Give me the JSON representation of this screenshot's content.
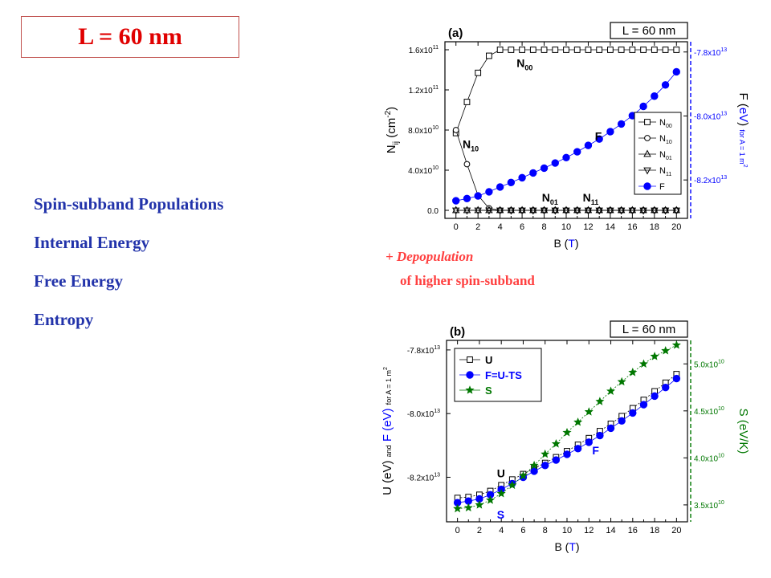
{
  "slide": {
    "title_label": "L = 60 nm",
    "topics": [
      "Spin-subband Populations",
      "Internal Energy",
      "Free Energy",
      "Entropy"
    ],
    "note_line1": "+ Depopulation",
    "note_line2": "of higher spin-subband"
  },
  "colors": {
    "blue": "#0000ff",
    "green": "#007700",
    "red": "#e00000",
    "topic": "#2233aa",
    "note": "#ff4040"
  },
  "chart_data": [
    {
      "type": "scatter",
      "panel_label": "(a)",
      "box_label": "L = 60 nm",
      "xlabel_text": "B (",
      "xlabel_unit": "T",
      "xlabel_close": ")",
      "xlim": [
        -1,
        21
      ],
      "xticks": [
        "0",
        "2",
        "4",
        "6",
        "8",
        "10",
        "12",
        "14",
        "16",
        "18",
        "20"
      ],
      "ylabel_left": "N",
      "ylabel_left_sub": "ij",
      "ylabel_left_unit": " (cm",
      "ylabel_left_sup": "-2",
      "ylabel_left_close": ")",
      "ylim_left": [
        -8000000000.0,
        168000000000.0
      ],
      "yticks_left": [
        {
          "v": 0,
          "label": "0.0"
        },
        {
          "v": 40000000000.0,
          "label": "4.0x10",
          "exp": "10"
        },
        {
          "v": 80000000000.0,
          "label": "8.0x10",
          "exp": "10"
        },
        {
          "v": 120000000000.0,
          "label": "1.2x10",
          "exp": "11"
        },
        {
          "v": 160000000000.0,
          "label": "1.6x10",
          "exp": "11"
        }
      ],
      "ylabel_right": "F (",
      "ylabel_right_unit": "eV",
      "ylabel_right_close": ")",
      "ylabel_right_note": "for A = 1 m",
      "ylabel_right_note_sup": "2",
      "yticks_right": [
        {
          "v": -78000000000000.0,
          "label": "-7.8x10",
          "exp": "13"
        },
        {
          "v": -80000000000000.0,
          "label": "-8.0x10",
          "exp": "13"
        },
        {
          "v": -82000000000000.0,
          "label": "-8.2x10",
          "exp": "13"
        }
      ],
      "ylim_right": [
        -83200000000000.0,
        -77680000000000.0
      ],
      "x": [
        0,
        1,
        2,
        3,
        4,
        5,
        6,
        7,
        8,
        9,
        10,
        11,
        12,
        13,
        14,
        15,
        16,
        17,
        18,
        19,
        20
      ],
      "series": [
        {
          "name": "N",
          "sub": "00",
          "marker": "square",
          "axis": "left",
          "color": "#000000",
          "values": [
            77000000000.0,
            108000000000.0,
            137000000000.0,
            154000000000.0,
            160000000000.0,
            160000000000.0,
            160000000000.0,
            160000000000.0,
            160000000000.0,
            160000000000.0,
            160000000000.0,
            160000000000.0,
            160000000000.0,
            160000000000.0,
            160000000000.0,
            160000000000.0,
            160000000000.0,
            160000000000.0,
            160000000000.0,
            160000000000.0,
            160000000000.0
          ]
        },
        {
          "name": "N",
          "sub": "10",
          "marker": "circle",
          "axis": "left",
          "color": "#000000",
          "values": [
            80000000000.0,
            46000000000.0,
            15000000000.0,
            2000000000.0,
            0,
            0,
            0,
            0,
            0,
            0,
            0,
            0,
            0,
            0,
            0,
            0,
            0,
            0,
            0,
            0,
            0
          ]
        },
        {
          "name": "N",
          "sub": "01",
          "marker": "triangle",
          "axis": "left",
          "color": "#000000",
          "values": [
            0,
            0,
            0,
            0,
            0,
            0,
            0,
            0,
            0,
            0,
            0,
            0,
            0,
            0,
            0,
            0,
            0,
            0,
            0,
            0,
            0
          ]
        },
        {
          "name": "N",
          "sub": "11",
          "marker": "triangle-down",
          "axis": "left",
          "color": "#000000",
          "values": [
            0,
            0,
            0,
            0,
            0,
            0,
            0,
            0,
            0,
            0,
            0,
            0,
            0,
            0,
            0,
            0,
            0,
            0,
            0,
            0,
            0
          ]
        },
        {
          "name": "F",
          "marker": "filled-circle",
          "axis": "right",
          "color": "#0000ff",
          "values": [
            -82650000000000.0,
            -82580000000000.0,
            -82500000000000.0,
            -82370000000000.0,
            -82220000000000.0,
            -82080000000000.0,
            -81930000000000.0,
            -81780000000000.0,
            -81630000000000.0,
            -81470000000000.0,
            -81300000000000.0,
            -81120000000000.0,
            -80920000000000.0,
            -80720000000000.0,
            -80490000000000.0,
            -80250000000000.0,
            -79990000000000.0,
            -79700000000000.0,
            -79380000000000.0,
            -79030000000000.0,
            -78620000000000.0
          ]
        }
      ],
      "annotations": [
        {
          "text": "N",
          "sub": "00",
          "x": 5.5,
          "y": 143000000000.0
        },
        {
          "text": "N",
          "sub": "10",
          "x": 0.6,
          "y": 62000000000.0
        },
        {
          "text": "F",
          "x": 12.6,
          "y": 70000000000.0
        },
        {
          "text": "N",
          "sub": "01",
          "x": 7.8,
          "y": 9000000000.0
        },
        {
          "text": "N",
          "sub": "11",
          "x": 11.5,
          "y": 9000000000.0
        }
      ],
      "legend_position": "right"
    },
    {
      "type": "scatter",
      "panel_label": "(b)",
      "box_label": "L = 60 nm",
      "xlabel_text": "B (",
      "xlabel_unit": "T",
      "xlabel_close": ")",
      "xlim": [
        -1,
        21
      ],
      "xticks": [
        "0",
        "2",
        "4",
        "6",
        "8",
        "10",
        "12",
        "14",
        "16",
        "18",
        "20"
      ],
      "ylabel_left_u": "U (eV)",
      "ylabel_left_and": "and",
      "ylabel_left_f": "F (eV)",
      "ylabel_left_note": "for A = 1 m",
      "ylabel_left_note_sup": "2",
      "ylim_left": [
        -83400000000000.0,
        -77700000000000.0
      ],
      "yticks_left": [
        {
          "v": -78000000000000.0,
          "label": "-7.8x10",
          "exp": "13"
        },
        {
          "v": -80000000000000.0,
          "label": "-8.0x10",
          "exp": "13"
        },
        {
          "v": -82000000000000.0,
          "label": "-8.2x10",
          "exp": "13"
        }
      ],
      "ylabel_right": "S (",
      "ylabel_right_unit": "eV/K",
      "ylabel_right_close": ")",
      "ylim_right": [
        33200000000.0,
        52500000000.0
      ],
      "yticks_right": [
        {
          "v": 35000000000.0,
          "label": "3.5x10",
          "exp": "10"
        },
        {
          "v": 40000000000.0,
          "label": "4.0x10",
          "exp": "10"
        },
        {
          "v": 45000000000.0,
          "label": "4.5x10",
          "exp": "10"
        },
        {
          "v": 50000000000.0,
          "label": "5.0x10",
          "exp": "10"
        }
      ],
      "x": [
        0,
        1,
        2,
        3,
        4,
        5,
        6,
        7,
        8,
        9,
        10,
        11,
        12,
        13,
        14,
        15,
        16,
        17,
        18,
        19,
        20
      ],
      "series": [
        {
          "name": "U",
          "marker": "square",
          "axis": "left",
          "color": "#000000",
          "values": [
            -82650000000000.0,
            -82620000000000.0,
            -82550000000000.0,
            -82430000000000.0,
            -82250000000000.0,
            -82070000000000.0,
            -81900000000000.0,
            -81720000000000.0,
            -81550000000000.0,
            -81370000000000.0,
            -81180000000000.0,
            -80980000000000.0,
            -80770000000000.0,
            -80550000000000.0,
            -80320000000000.0,
            -80080000000000.0,
            -79830000000000.0,
            -79570000000000.0,
            -79300000000000.0,
            -79030000000000.0,
            -78760000000000.0
          ]
        },
        {
          "name": "F=U-TS",
          "marker": "filled-circle",
          "axis": "left",
          "color": "#0000ff",
          "values": [
            -82800000000000.0,
            -82750000000000.0,
            -82680000000000.0,
            -82550000000000.0,
            -82380000000000.0,
            -82200000000000.0,
            -82000000000000.0,
            -81810000000000.0,
            -81630000000000.0,
            -81460000000000.0,
            -81280000000000.0,
            -81100000000000.0,
            -80900000000000.0,
            -80690000000000.0,
            -80460000000000.0,
            -80230000000000.0,
            -79980000000000.0,
            -79720000000000.0,
            -79450000000000.0,
            -79180000000000.0,
            -78900000000000.0
          ]
        },
        {
          "name": "S",
          "marker": "star",
          "axis": "right",
          "color": "#007700",
          "values": [
            34600000000.0,
            34700000000.0,
            35000000000.0,
            35500000000.0,
            36200000000.0,
            37100000000.0,
            38100000000.0,
            39200000000.0,
            40400000000.0,
            41500000000.0,
            42700000000.0,
            43800000000.0,
            44900000000.0,
            46000000000.0,
            47100000000.0,
            48100000000.0,
            49100000000.0,
            50000000000.0,
            50800000000.0,
            51400000000.0,
            52000000000.0
          ]
        }
      ],
      "annotations": [
        {
          "text": "U",
          "color": "#000000",
          "x": 3.6,
          "y": -82000000000000.0
        },
        {
          "text": "S",
          "color": "#0000ff",
          "x": 3.6,
          "y": -83300000000000.0
        },
        {
          "text": "F",
          "color": "#0000ff",
          "x": 12.3,
          "y": -81280000000000.0
        }
      ],
      "legend_position": "top-left"
    }
  ]
}
